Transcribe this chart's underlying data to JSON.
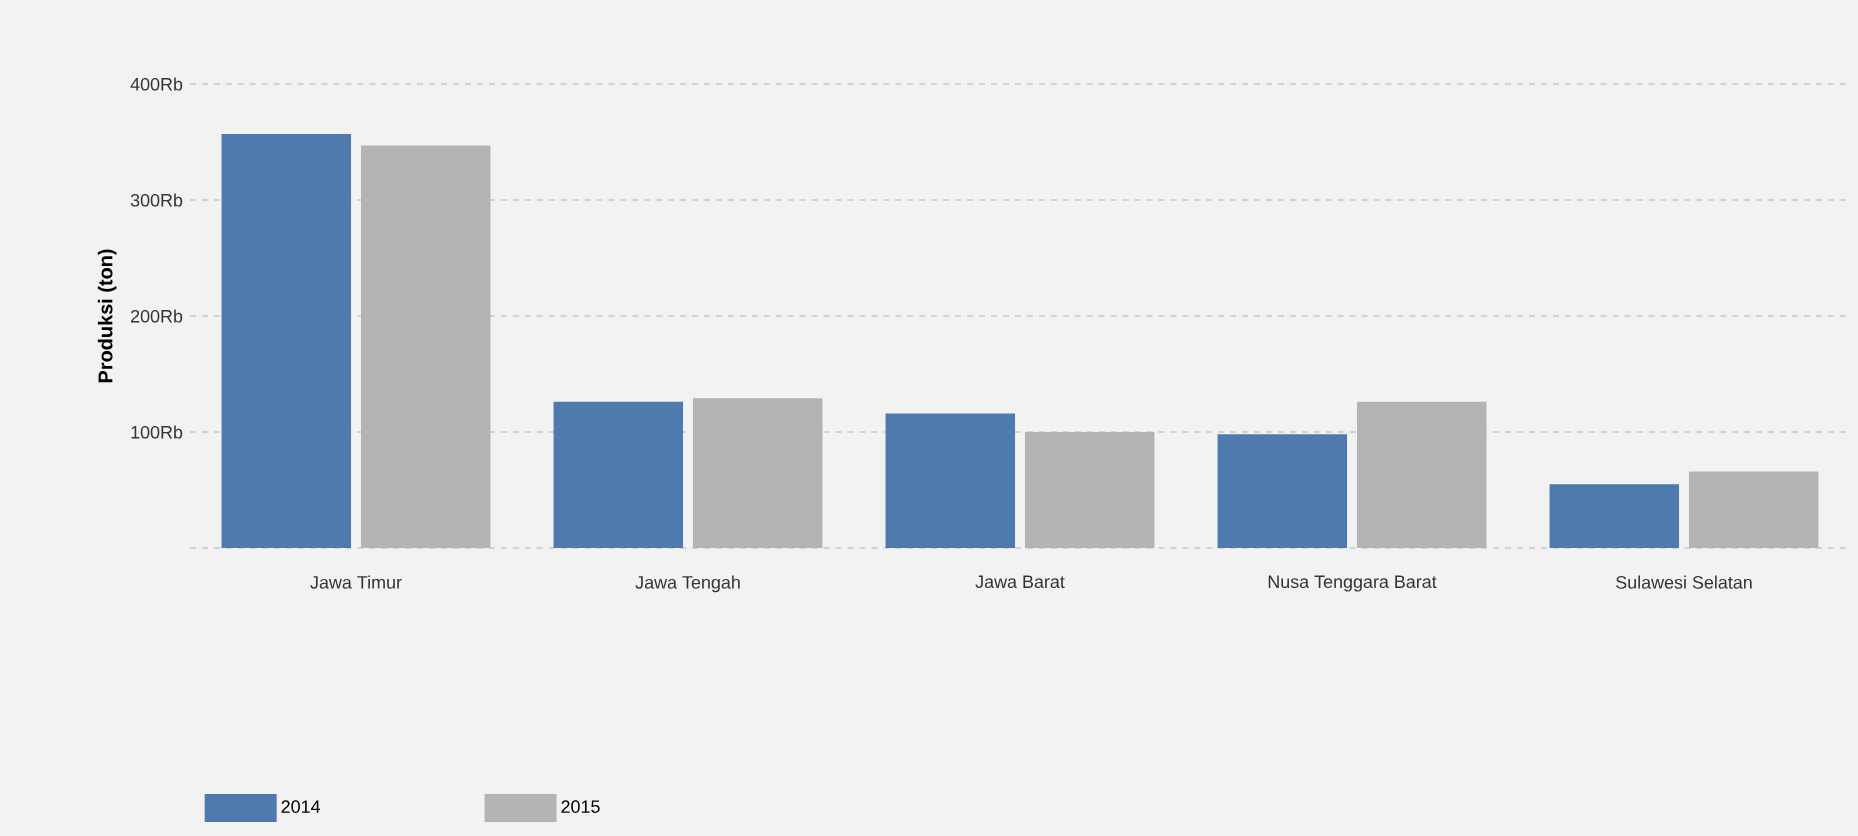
{
  "chart_data": {
    "type": "bar",
    "ylabel": "Produksi (ton)",
    "categories": [
      "Jawa Timur",
      "Jawa Tengah",
      "Jawa Barat",
      "Nusa Tenggara Barat",
      "Sulawesi Selatan"
    ],
    "series": [
      {
        "name": "2014",
        "color": "#4f7aad",
        "values": [
          357,
          126,
          116,
          98,
          55
        ]
      },
      {
        "name": "2015",
        "color": "#b3b3b3",
        "values": [
          347,
          129,
          100,
          126,
          66
        ]
      }
    ],
    "ylim": [
      0,
      400
    ],
    "yticks": [
      {
        "value": 0,
        "label": null
      },
      {
        "value": 100,
        "label": "100Rb"
      },
      {
        "value": 200,
        "label": "200Rb"
      },
      {
        "value": 300,
        "label": "300Rb"
      },
      {
        "value": 400,
        "label": "400Rb"
      }
    ],
    "grid": "y",
    "legend": "bottom left"
  }
}
